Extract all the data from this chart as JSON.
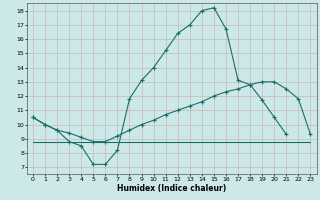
{
  "xlabel": "Humidex (Indice chaleur)",
  "bg_color": "#cce8e8",
  "grid_color": "#b0d0d0",
  "line_color": "#1a6e6a",
  "xlim": [
    -0.5,
    23.5
  ],
  "ylim": [
    6.5,
    18.5
  ],
  "xticks": [
    0,
    1,
    2,
    3,
    4,
    5,
    6,
    7,
    8,
    9,
    10,
    11,
    12,
    13,
    14,
    15,
    16,
    17,
    18,
    19,
    20,
    21,
    22,
    23
  ],
  "yticks": [
    7,
    8,
    9,
    10,
    11,
    12,
    13,
    14,
    15,
    16,
    17,
    18
  ],
  "line1_x": [
    0,
    1,
    2,
    3,
    4,
    5,
    6,
    7,
    8,
    9,
    10,
    11,
    12,
    13,
    14,
    15,
    16,
    17,
    18,
    19,
    20,
    21
  ],
  "line1_y": [
    10.5,
    10.0,
    9.6,
    8.8,
    8.5,
    7.2,
    7.2,
    8.2,
    11.8,
    13.1,
    14.0,
    15.2,
    16.4,
    17.0,
    18.0,
    18.2,
    16.7,
    13.1,
    12.8,
    11.7,
    10.5,
    9.3
  ],
  "line2_x": [
    0,
    1,
    2,
    3,
    4,
    5,
    6,
    7,
    8,
    9,
    10,
    11,
    12,
    13,
    14,
    15,
    16,
    17,
    18,
    19,
    20,
    21,
    22,
    23
  ],
  "line2_y": [
    10.5,
    10.0,
    9.6,
    9.4,
    9.1,
    8.8,
    8.8,
    9.2,
    9.6,
    10.0,
    10.3,
    10.7,
    11.0,
    11.3,
    11.6,
    12.0,
    12.3,
    12.5,
    12.8,
    13.0,
    13.0,
    12.5,
    11.8,
    9.3
  ],
  "line3_x": [
    0,
    3,
    23
  ],
  "line3_y": [
    8.8,
    8.8,
    8.8
  ]
}
